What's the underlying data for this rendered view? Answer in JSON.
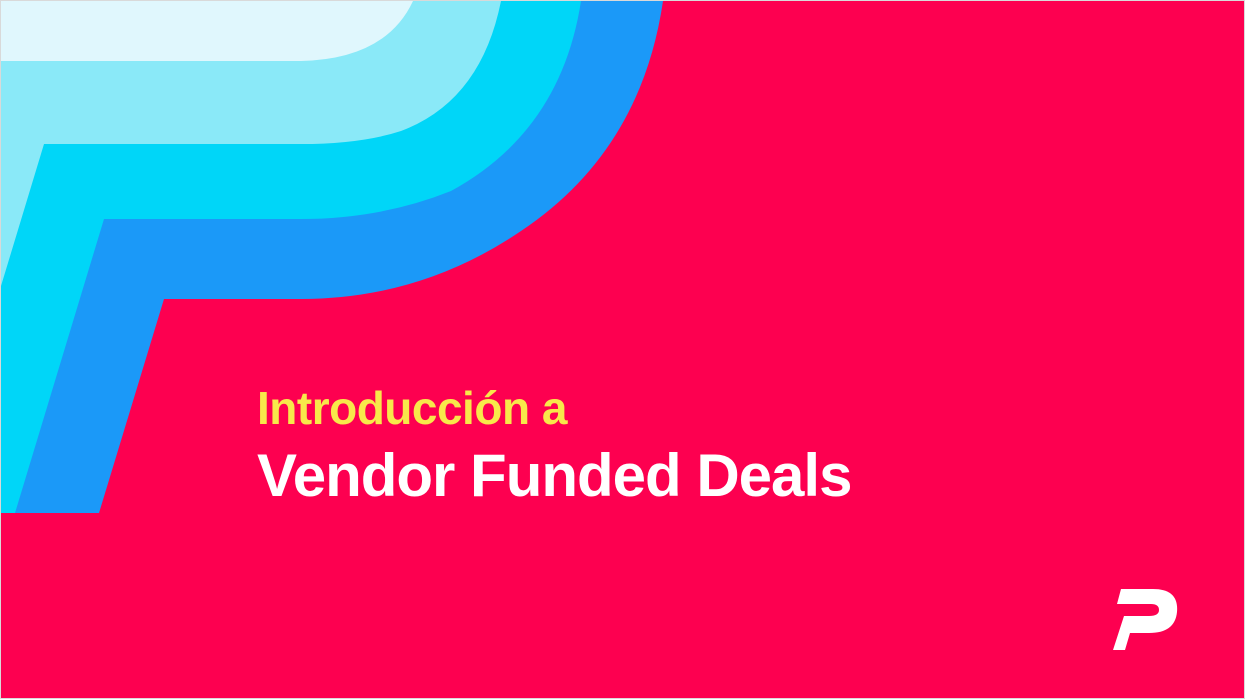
{
  "slide": {
    "subtitle": "Introducción a",
    "title": "Vendor Funded Deals"
  },
  "icons": {
    "decor": "stylized-p-shape",
    "logo": "p-logo-icon"
  },
  "colors": {
    "background": "#fd0050",
    "subtitle": "#f8e84a",
    "title": "#ffffff",
    "band_lightest": "#e0f7fd",
    "band_light": "#8ae9f8",
    "band_cyan": "#00d6f8",
    "band_blue": "#1b99f8",
    "logo": "#ffffff"
  }
}
